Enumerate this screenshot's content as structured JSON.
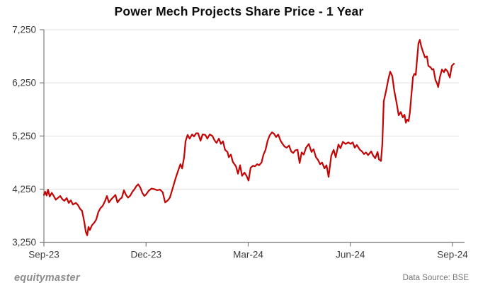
{
  "title": "Power Mech Projects Share Price - 1 Year",
  "footer": {
    "brand": "equitymaster",
    "source": "Data Source: BSE"
  },
  "colors": {
    "background": "#ffffff",
    "line": "#c40505",
    "grid": "#e1e1e1",
    "axis": "#7f7f7f",
    "tick_label": "#3d3d3d",
    "title_text": "#0d0d0d"
  },
  "chart_data": {
    "type": "line",
    "title": "Power Mech Projects Share Price - 1 Year",
    "xlabel": "",
    "ylabel": "",
    "x_unit": "months since Sep-2023",
    "xlim": [
      0,
      12.2
    ],
    "ylim": [
      3250,
      7250
    ],
    "grid": "horizontal",
    "legend": "none",
    "x_tick_positions": [
      0,
      3,
      6,
      9,
      12
    ],
    "x_tick_labels": [
      "Sep-23",
      "Dec-23",
      "Mar-24",
      "Jun-24",
      "Sep-24"
    ],
    "y_tick_values": [
      3250,
      4250,
      5250,
      6250,
      7250
    ],
    "y_tick_labels": [
      "3,250",
      "4,250",
      "5,250",
      "6,250",
      "7,250"
    ],
    "series": [
      {
        "name": "Power Mech Projects share price (BSE)",
        "x": [
          0.0,
          0.04,
          0.08,
          0.12,
          0.17,
          0.23,
          0.29,
          0.35,
          0.42,
          0.48,
          0.54,
          0.6,
          0.67,
          0.73,
          0.79,
          0.85,
          0.94,
          1.0,
          1.06,
          1.12,
          1.19,
          1.23,
          1.27,
          1.31,
          1.35,
          1.41,
          1.48,
          1.54,
          1.6,
          1.66,
          1.73,
          1.79,
          1.85,
          1.91,
          1.98,
          2.04,
          2.1,
          2.16,
          2.23,
          2.29,
          2.35,
          2.41,
          2.47,
          2.54,
          2.6,
          2.66,
          2.72,
          2.77,
          2.83,
          2.89,
          2.95,
          3.0,
          3.08,
          3.16,
          3.24,
          3.33,
          3.41,
          3.49,
          3.56,
          3.64,
          3.7,
          3.79,
          3.87,
          3.95,
          4.01,
          4.06,
          4.12,
          4.16,
          4.22,
          4.28,
          4.35,
          4.41,
          4.47,
          4.53,
          4.6,
          4.66,
          4.74,
          4.8,
          4.87,
          4.95,
          5.01,
          5.07,
          5.14,
          5.2,
          5.26,
          5.32,
          5.39,
          5.43,
          5.49,
          5.55,
          5.64,
          5.7,
          5.76,
          5.82,
          5.89,
          5.95,
          6.01,
          6.07,
          6.14,
          6.2,
          6.26,
          6.32,
          6.39,
          6.45,
          6.51,
          6.57,
          6.63,
          6.7,
          6.76,
          6.82,
          6.88,
          6.95,
          7.01,
          7.07,
          7.13,
          7.2,
          7.26,
          7.32,
          7.38,
          7.45,
          7.51,
          7.57,
          7.63,
          7.7,
          7.78,
          7.86,
          7.92,
          7.99,
          8.05,
          8.11,
          8.17,
          8.24,
          8.3,
          8.36,
          8.44,
          8.51,
          8.57,
          8.65,
          8.71,
          8.78,
          8.86,
          8.94,
          9.01,
          9.07,
          9.13,
          9.19,
          9.28,
          9.34,
          9.4,
          9.46,
          9.52,
          9.61,
          9.67,
          9.73,
          9.8,
          9.84,
          9.9,
          9.94,
          9.98,
          10.05,
          10.11,
          10.17,
          10.23,
          10.29,
          10.36,
          10.42,
          10.48,
          10.54,
          10.59,
          10.63,
          10.67,
          10.71,
          10.75,
          10.79,
          10.84,
          10.88,
          10.92,
          10.96,
          11.0,
          11.04,
          11.08,
          11.13,
          11.19,
          11.25,
          11.29,
          11.36,
          11.4,
          11.44,
          11.5,
          11.54,
          11.58,
          11.63,
          11.69,
          11.75,
          11.79,
          11.85,
          11.92,
          11.98,
          12.04
        ],
        "y": [
          4140,
          4200,
          4130,
          4240,
          4110,
          4180,
          4120,
          4050,
          4090,
          4120,
          4060,
          4030,
          4080,
          3990,
          4040,
          3960,
          3990,
          3950,
          3880,
          3840,
          3620,
          3450,
          3380,
          3540,
          3480,
          3570,
          3620,
          3680,
          3820,
          3890,
          3940,
          4020,
          4120,
          4000,
          4060,
          4100,
          4140,
          4000,
          4060,
          4090,
          4230,
          4140,
          4090,
          4130,
          4200,
          4250,
          4310,
          4340,
          4280,
          4180,
          4120,
          4150,
          4220,
          4260,
          4250,
          4230,
          4240,
          4190,
          4000,
          4040,
          4090,
          4280,
          4460,
          4610,
          4720,
          4640,
          4860,
          5150,
          5270,
          5200,
          5280,
          5240,
          5300,
          5300,
          5160,
          5280,
          5270,
          5200,
          5280,
          5250,
          5170,
          5120,
          5200,
          5100,
          5150,
          4990,
          4950,
          4850,
          4900,
          4760,
          4680,
          4540,
          4700,
          4500,
          4560,
          4500,
          4410,
          4650,
          4690,
          4680,
          4720,
          4700,
          4750,
          4900,
          4990,
          5160,
          5260,
          5320,
          5290,
          5230,
          5280,
          5160,
          5100,
          5050,
          5030,
          5070,
          4960,
          4930,
          4980,
          4990,
          4740,
          4940,
          4900,
          5030,
          5100,
          4950,
          5000,
          4850,
          4800,
          4720,
          4750,
          4640,
          4700,
          4480,
          4880,
          4990,
          4850,
          5090,
          5020,
          5140,
          5100,
          5130,
          5100,
          5130,
          5030,
          5080,
          4990,
          4960,
          4910,
          4940,
          4890,
          4960,
          4880,
          4830,
          4950,
          4810,
          4780,
          5100,
          5900,
          6100,
          6300,
          6460,
          6380,
          6100,
          5870,
          5640,
          5700,
          5600,
          5650,
          5500,
          5560,
          5530,
          5700,
          6000,
          6360,
          6420,
          6400,
          6700,
          6990,
          7060,
          6940,
          6840,
          6730,
          6750,
          6570,
          6540,
          6500,
          6510,
          6300,
          6250,
          6170,
          6360,
          6500,
          6450,
          6510,
          6470,
          6350,
          6570,
          6610
        ]
      }
    ]
  }
}
